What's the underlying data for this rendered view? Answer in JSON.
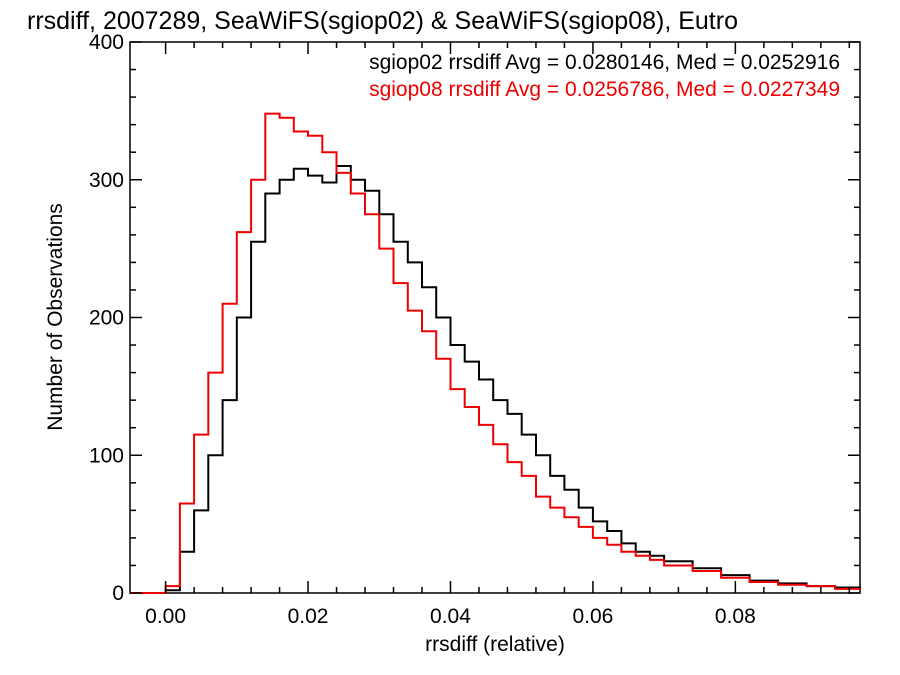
{
  "chart_data": {
    "type": "line",
    "title": "rrsdiff, 2007289, SeaWiFS(sgiop02) & SeaWiFS(sgiop08), Eutro",
    "xlabel": "rrsdiff (relative)",
    "ylabel": "Number of Observations",
    "xlim": [
      -0.005,
      0.0975
    ],
    "ylim": [
      0,
      400
    ],
    "x_ticks": [
      0.0,
      0.02,
      0.04,
      0.06,
      0.08
    ],
    "x_tick_labels": [
      "0.00",
      "0.02",
      "0.04",
      "0.06",
      "0.08"
    ],
    "y_ticks": [
      0,
      100,
      200,
      300,
      400
    ],
    "y_tick_labels": [
      "0",
      "100",
      "200",
      "300",
      "400"
    ],
    "grid": false,
    "legend_placement": "top-right",
    "legend": [
      {
        "text": "sgiop02 rrsdiff Avg = 0.0280146, Med = 0.0252916",
        "color": "#000000"
      },
      {
        "text": "sgiop08 rrsdiff Avg = 0.0256786, Med = 0.0227349",
        "color": "#ee0000"
      }
    ],
    "series": [
      {
        "color": "#000000",
        "x": [
          -0.005,
          0.0,
          0.002,
          0.004,
          0.006,
          0.008,
          0.01,
          0.012,
          0.014,
          0.016,
          0.018,
          0.02,
          0.022,
          0.024,
          0.026,
          0.028,
          0.03,
          0.032,
          0.034,
          0.036,
          0.038,
          0.04,
          0.042,
          0.044,
          0.046,
          0.048,
          0.05,
          0.052,
          0.054,
          0.056,
          0.058,
          0.06,
          0.062,
          0.064,
          0.066,
          0.068,
          0.07,
          0.074,
          0.078,
          0.082,
          0.086,
          0.09,
          0.094,
          0.0975
        ],
        "y": [
          0,
          2,
          30,
          60,
          100,
          140,
          200,
          255,
          290,
          300,
          308,
          303,
          298,
          310,
          300,
          292,
          275,
          255,
          240,
          222,
          200,
          180,
          168,
          155,
          140,
          130,
          115,
          100,
          85,
          75,
          62,
          52,
          45,
          36,
          30,
          27,
          23,
          18,
          13,
          9,
          7,
          5,
          4,
          2
        ]
      },
      {
        "color": "#ee0000",
        "x": [
          -0.005,
          0.0,
          0.002,
          0.004,
          0.006,
          0.008,
          0.01,
          0.012,
          0.014,
          0.016,
          0.018,
          0.02,
          0.022,
          0.024,
          0.026,
          0.028,
          0.03,
          0.032,
          0.034,
          0.036,
          0.038,
          0.04,
          0.042,
          0.044,
          0.046,
          0.048,
          0.05,
          0.052,
          0.054,
          0.056,
          0.058,
          0.06,
          0.062,
          0.064,
          0.066,
          0.068,
          0.07,
          0.074,
          0.078,
          0.082,
          0.086,
          0.09,
          0.094,
          0.0975
        ],
        "y": [
          0,
          5,
          65,
          115,
          160,
          210,
          262,
          300,
          348,
          345,
          335,
          332,
          320,
          305,
          290,
          275,
          250,
          225,
          205,
          190,
          170,
          148,
          135,
          122,
          108,
          95,
          85,
          70,
          62,
          55,
          48,
          40,
          35,
          30,
          27,
          24,
          20,
          16,
          11,
          8,
          6,
          5,
          3,
          2
        ]
      }
    ]
  }
}
